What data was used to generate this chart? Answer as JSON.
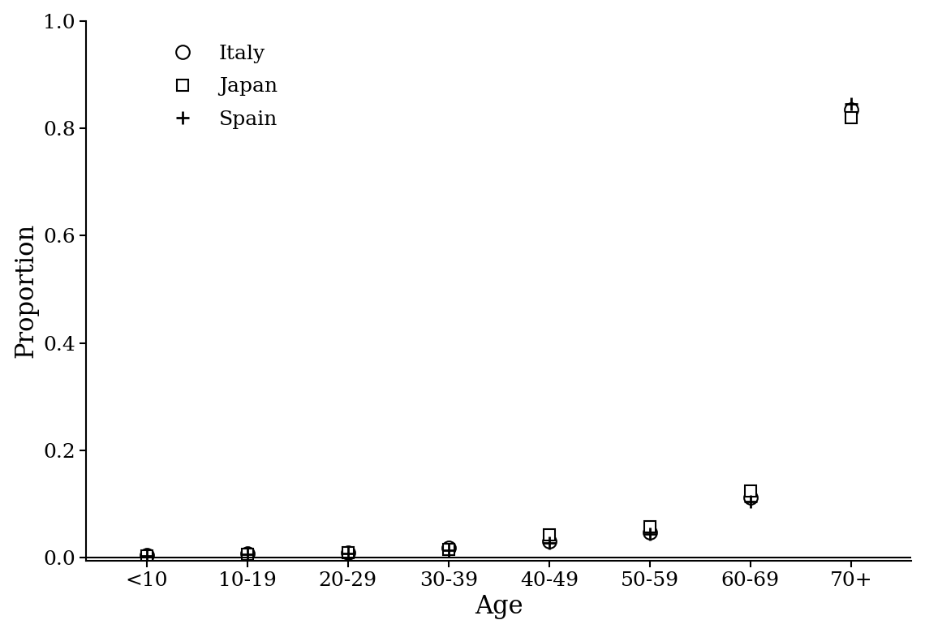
{
  "categories": [
    "<10",
    "10-19",
    "20-29",
    "30-39",
    "40-49",
    "50-59",
    "60-69",
    "70+"
  ],
  "italy": [
    0.005,
    0.008,
    0.01,
    0.018,
    0.03,
    0.048,
    0.112,
    0.835
  ],
  "japan": [
    0.004,
    0.007,
    0.009,
    0.016,
    0.042,
    0.058,
    0.125,
    0.82
  ],
  "spain": [
    0.003,
    0.006,
    0.008,
    0.014,
    0.028,
    0.044,
    0.105,
    0.845
  ],
  "xlabel": "Age",
  "ylabel": "Proportion",
  "ylim_min": -0.005,
  "ylim_max": 1.0,
  "yticks": [
    0.0,
    0.2,
    0.4,
    0.6,
    0.8,
    1.0
  ],
  "background_color": "#ffffff",
  "marker_size_circle": 12,
  "marker_size_square": 10,
  "marker_size_plus": 12,
  "marker_edge_width": 1.5,
  "plus_edge_width": 2.0,
  "font_size_ticks": 18,
  "font_size_labels": 22,
  "font_size_legend": 18
}
